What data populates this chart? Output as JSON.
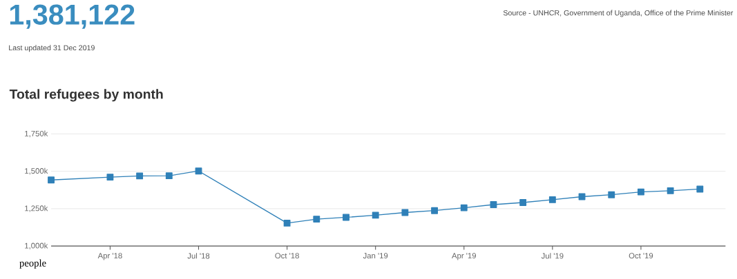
{
  "chart_data": {
    "type": "line",
    "title": "Total refugees by month",
    "ylabel": "people",
    "annotations": [
      "1,381,122",
      "Last updated 31 Dec 2019",
      "Source - UNHCR, Government of Uganda, Office of the Prime Minister"
    ],
    "x": [
      "2018-02",
      "2018-04",
      "2018-05",
      "2018-06",
      "2018-07",
      "2018-10",
      "2018-11",
      "2018-12",
      "2019-01",
      "2019-02",
      "2019-03",
      "2019-04",
      "2019-05",
      "2019-06",
      "2019-07",
      "2019-08",
      "2019-09",
      "2019-10",
      "2019-11",
      "2019-12"
    ],
    "series": [
      {
        "color": "#2f80b8",
        "values": [
          1442,
          1461,
          1469,
          1470,
          1502,
          1153,
          1180,
          1192,
          1206,
          1224,
          1237,
          1256,
          1277,
          1291,
          1310,
          1330,
          1343,
          1362,
          1370,
          1381
        ]
      }
    ],
    "xlim": [
      "2018-02",
      "2019-12-27"
    ],
    "xticks": [
      {
        "value": "2018-04",
        "label": "Apr '18"
      },
      {
        "value": "2018-07",
        "label": "Jul '18"
      },
      {
        "value": "2018-10",
        "label": "Oct '18"
      },
      {
        "value": "2019-01",
        "label": "Jan '19"
      },
      {
        "value": "2019-04",
        "label": "Apr '19"
      },
      {
        "value": "2019-07",
        "label": "Jul '19"
      },
      {
        "value": "2019-10",
        "label": "Oct '19"
      }
    ],
    "ylim": [
      1000,
      1750
    ],
    "yticks": [
      {
        "value": 1000,
        "label": "1,000k"
      },
      {
        "value": 1250,
        "label": "1,250k"
      },
      {
        "value": 1500,
        "label": "1,500k"
      },
      {
        "value": 1750,
        "label": "1,750k"
      }
    ],
    "grid": "y",
    "marker": "square",
    "line_style": "solid"
  }
}
